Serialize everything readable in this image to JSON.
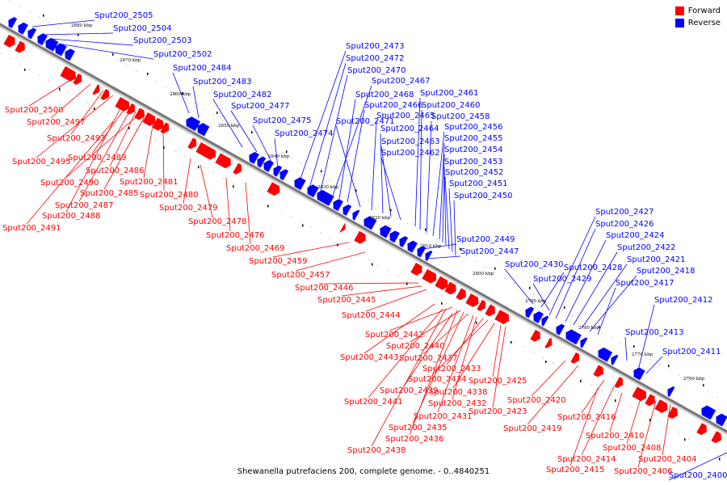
{
  "legend": {
    "forward_label": "Forward",
    "reverse_label": "Reverse",
    "forward_color": "#ff0000",
    "reverse_color": "#0000ff"
  },
  "caption": "Shewanella putrefaciens 200, complete genome. - 0..4840251",
  "ticks": [
    "2880 kbp",
    "2870 kbp",
    "2860 kbp",
    "2850 kbp",
    "2840 kbp",
    "2830 kbp",
    "2820 kbp",
    "2810 kbp",
    "2800 kbp",
    "2790 kbp",
    "2780 kbp",
    "2770 kbp",
    "2760 kbp"
  ],
  "reverse_labels": [
    "Sput200_2505",
    "Sput200_2504",
    "Sput200_2503",
    "Sput200_2502",
    "Sput200_2484",
    "Sput200_2483",
    "Sput200_2482",
    "Sput200_2477",
    "Sput200_2475",
    "Sput200_2474",
    "Sput200_2473",
    "Sput200_2472",
    "Sput200_2470",
    "Sput200_2467",
    "Sput200_2468",
    "Sput200_2466",
    "Sput200_2471",
    "Sput200_2465",
    "Sput200_2464",
    "Sput200_2463",
    "Sput200_2462",
    "Sput200_2461",
    "Sput200_2460",
    "Sput200_2458",
    "Sput200_2456",
    "Sput200_2455",
    "Sput200_2454",
    "Sput200_2453",
    "Sput200_2452",
    "Sput200_2451",
    "Sput200_2450",
    "Sput200_2449",
    "Sput200_2447",
    "Sput200_2430",
    "Sput200_2428",
    "Sput200_2429",
    "Sput200_2427",
    "Sput200_2426",
    "Sput200_2424",
    "Sput200_2422",
    "Sput200_2421",
    "Sput200_2418",
    "Sput200_2417",
    "Sput200_2412",
    "Sput200_2413",
    "Sput200_2411",
    "Sput200_2400"
  ],
  "forward_labels": [
    "Sput200_2500",
    "Sput200_2497",
    "Sput200_2493",
    "Sput200_2495",
    "Sput200_2489",
    "Sput200_2486",
    "Sput200_2490",
    "Sput200_2481",
    "Sput200_2485",
    "Sput200_2480",
    "Sput200_2487",
    "Sput200_2488",
    "Sput200_2479",
    "Sput200_2491",
    "Sput200_2478",
    "Sput200_2476",
    "Sput200_2469",
    "Sput200_2459",
    "Sput200_2457",
    "Sput200_2446",
    "Sput200_2445",
    "Sput200_2444",
    "Sput200_2442",
    "Sput200_2440",
    "Sput200_2443",
    "Sput200_2437",
    "Sput200_2433",
    "Sput200_2434",
    "Sput200_2425",
    "Sput200_2439",
    "Sput200_4338",
    "Sput200_2441",
    "Sput200_2432",
    "Sput200_2423",
    "Sput200_2431",
    "Sput200_2435",
    "Sput200_2436",
    "Sput200_2438",
    "Sput200_2420",
    "Sput200_2419",
    "Sput200_2416",
    "Sput200_2410",
    "Sput200_2408",
    "Sput200_2414",
    "Sput200_2404",
    "Sput200_2415",
    "Sput200_2406"
  ]
}
